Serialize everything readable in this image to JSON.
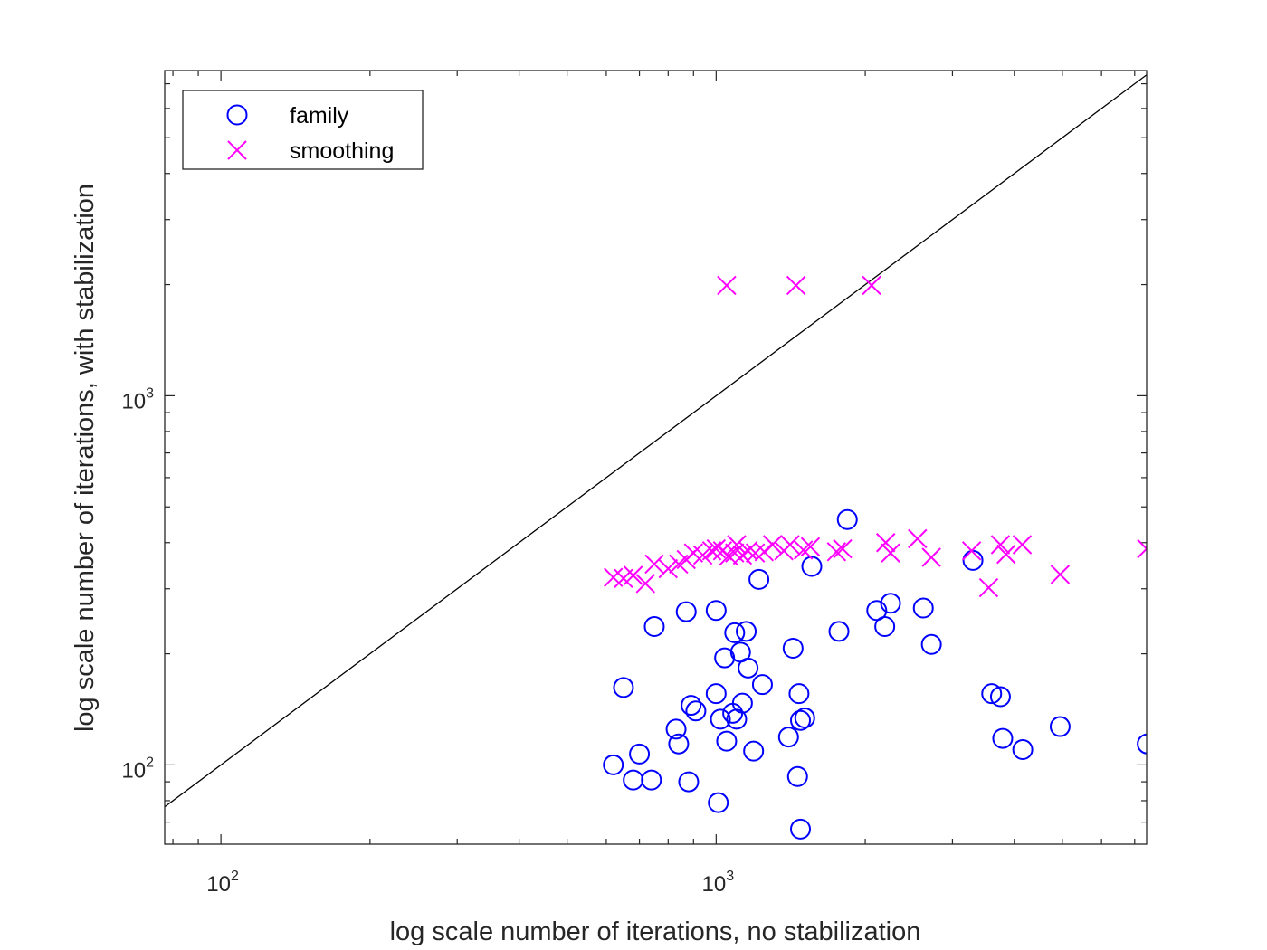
{
  "chart_data": {
    "type": "scatter",
    "xlabel": "log scale number of iterations, no stabilization",
    "ylabel": "log scale number of iterations, with stabilization",
    "xscale": "log",
    "yscale": "log",
    "xlim": [
      77,
      7400
    ],
    "ylim": [
      61,
      7600
    ],
    "xticks": [
      {
        "base": "10",
        "exp": "2",
        "value": 100
      },
      {
        "base": "10",
        "exp": "3",
        "value": 1000
      }
    ],
    "yticks": [
      {
        "base": "10",
        "exp": "2",
        "value": 100
      },
      {
        "base": "10",
        "exp": "3",
        "value": 1000
      }
    ],
    "grid": false,
    "legend_position": "top-left",
    "reference_line": {
      "type": "identity",
      "color": "#000000"
    },
    "series": [
      {
        "name": "family",
        "marker": "circle",
        "color": "#0000ff",
        "points": [
          [
            620,
            100
          ],
          [
            650,
            162
          ],
          [
            680,
            91
          ],
          [
            700,
            107
          ],
          [
            740,
            91
          ],
          [
            750,
            237
          ],
          [
            830,
            125
          ],
          [
            840,
            114
          ],
          [
            870,
            260
          ],
          [
            880,
            90
          ],
          [
            890,
            145
          ],
          [
            910,
            140
          ],
          [
            1000,
            156
          ],
          [
            1000,
            262
          ],
          [
            1010,
            79
          ],
          [
            1020,
            133
          ],
          [
            1040,
            195
          ],
          [
            1050,
            116
          ],
          [
            1080,
            138
          ],
          [
            1090,
            228
          ],
          [
            1100,
            133
          ],
          [
            1120,
            202
          ],
          [
            1130,
            147
          ],
          [
            1150,
            230
          ],
          [
            1160,
            183
          ],
          [
            1190,
            109
          ],
          [
            1220,
            318
          ],
          [
            1240,
            165
          ],
          [
            1400,
            119
          ],
          [
            1430,
            207
          ],
          [
            1460,
            93
          ],
          [
            1470,
            156
          ],
          [
            1480,
            132
          ],
          [
            1480,
            67
          ],
          [
            1510,
            134
          ],
          [
            1560,
            345
          ],
          [
            1770,
            230
          ],
          [
            1840,
            462
          ],
          [
            2110,
            262
          ],
          [
            2190,
            237
          ],
          [
            2250,
            274
          ],
          [
            2620,
            266
          ],
          [
            2720,
            212
          ],
          [
            3300,
            358
          ],
          [
            3600,
            156
          ],
          [
            3750,
            153
          ],
          [
            3790,
            118
          ],
          [
            4160,
            110
          ],
          [
            4950,
            127
          ],
          [
            7420,
            114
          ]
        ]
      },
      {
        "name": "smoothing",
        "marker": "x",
        "color": "#ff00ff",
        "points": [
          [
            620,
            322
          ],
          [
            650,
            320
          ],
          [
            680,
            326
          ],
          [
            720,
            310
          ],
          [
            750,
            350
          ],
          [
            800,
            340
          ],
          [
            840,
            350
          ],
          [
            870,
            360
          ],
          [
            900,
            375
          ],
          [
            940,
            370
          ],
          [
            980,
            380
          ],
          [
            1000,
            385
          ],
          [
            1030,
            380
          ],
          [
            1050,
            1990
          ],
          [
            1060,
            368
          ],
          [
            1090,
            375
          ],
          [
            1100,
            395
          ],
          [
            1130,
            370
          ],
          [
            1160,
            380
          ],
          [
            1200,
            375
          ],
          [
            1250,
            378
          ],
          [
            1300,
            395
          ],
          [
            1370,
            380
          ],
          [
            1410,
            395
          ],
          [
            1450,
            1990
          ],
          [
            1500,
            382
          ],
          [
            1550,
            390
          ],
          [
            1750,
            378
          ],
          [
            1800,
            385
          ],
          [
            2060,
            1990
          ],
          [
            2200,
            400
          ],
          [
            2250,
            375
          ],
          [
            2550,
            410
          ],
          [
            2720,
            365
          ],
          [
            3280,
            380
          ],
          [
            3550,
            302
          ],
          [
            3750,
            395
          ],
          [
            3850,
            372
          ],
          [
            4150,
            395
          ],
          [
            4950,
            328
          ],
          [
            7400,
            385
          ]
        ]
      }
    ]
  }
}
